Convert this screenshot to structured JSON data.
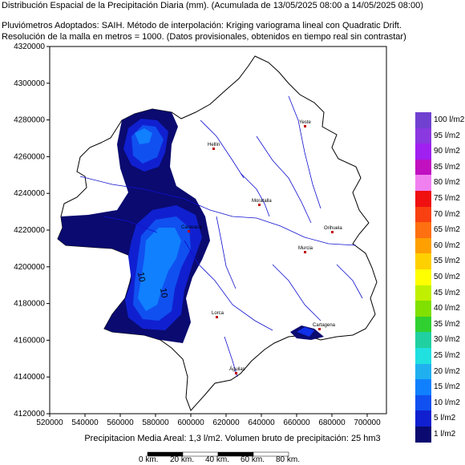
{
  "header": {
    "line1": "Distribución Espacial de la Precipitación Diaria (mm). (Acumulada de 13/05/2025 08:00 a 14/05/2025 08:00)",
    "line2": "Pluviómetros Adoptados: SAIH.  Método de interpolación: Kriging variograma lineal con Quadratic Drift.",
    "line3": "Resolución de la malla en metros = 1000. (Datos provisionales, obtenidos en tiempo real sin contrastar)"
  },
  "axes": {
    "y_ticks": [
      "4320000",
      "4300000",
      "4280000",
      "4260000",
      "4240000",
      "4220000",
      "4200000",
      "4180000",
      "4160000",
      "4140000",
      "4120000"
    ],
    "x_ticks": [
      "520000",
      "540000",
      "560000",
      "580000",
      "600000",
      "620000",
      "640000",
      "660000",
      "680000",
      "700000"
    ]
  },
  "cities": [
    {
      "name": "Yeste"
    },
    {
      "name": "Hellín"
    },
    {
      "name": "Moratalla"
    },
    {
      "name": "Caravaca"
    },
    {
      "name": "Orihuela"
    },
    {
      "name": "Murcia"
    },
    {
      "name": "Lorca"
    },
    {
      "name": "Cartagena"
    },
    {
      "name": "Águilas"
    }
  ],
  "contour_labels": [
    "10",
    "10"
  ],
  "legend": {
    "items": [
      {
        "label": "100 l/m2",
        "color": "#7040d0"
      },
      {
        "label": "95 l/m2",
        "color": "#8a38e0"
      },
      {
        "label": "90 l/m2",
        "color": "#a020f0"
      },
      {
        "label": "85 l/m2",
        "color": "#c010c0"
      },
      {
        "label": "80 l/m2",
        "color": "#f080f0"
      },
      {
        "label": "75 l/m2",
        "color": "#f01010"
      },
      {
        "label": "70 l/m2",
        "color": "#f84010"
      },
      {
        "label": "65 l/m2",
        "color": "#ff7010"
      },
      {
        "label": "60 l/m2",
        "color": "#ffa000"
      },
      {
        "label": "55 l/m2",
        "color": "#ffd000"
      },
      {
        "label": "50 l/m2",
        "color": "#ffff00"
      },
      {
        "label": "45 l/m2",
        "color": "#c0f000"
      },
      {
        "label": "40 l/m2",
        "color": "#80e000"
      },
      {
        "label": "35 l/m2",
        "color": "#30d030"
      },
      {
        "label": "30 l/m2",
        "color": "#20d0a0"
      },
      {
        "label": "25 l/m2",
        "color": "#20e0e0"
      },
      {
        "label": "20 l/m2",
        "color": "#20b0f0"
      },
      {
        "label": "15 l/m2",
        "color": "#1080ff"
      },
      {
        "label": "10 l/m2",
        "color": "#1050f0"
      },
      {
        "label": "5 l/m2",
        "color": "#1020d0"
      },
      {
        "label": "1 l/m2",
        "color": "#0a0a70"
      }
    ]
  },
  "footer": {
    "summary": "Precipitacion Media Areal: 1,3 l/m2. Volumen bruto de precipitación: 25 hm3"
  },
  "scale_bar": {
    "labels": [
      "0 km.",
      "20 km.",
      "40 km.",
      "60 km.",
      "80 km."
    ]
  }
}
